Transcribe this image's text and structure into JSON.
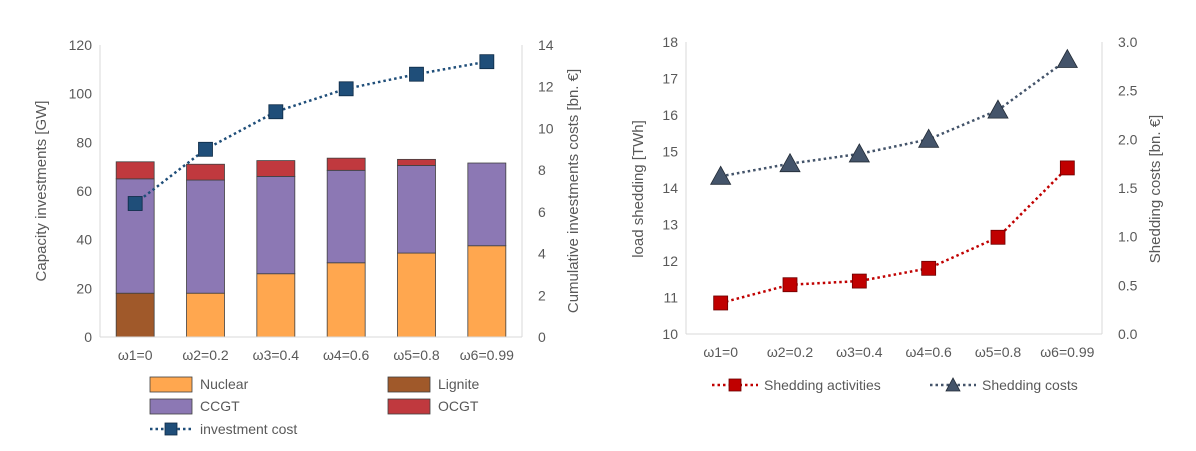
{
  "chart_data": [
    {
      "type": "bar",
      "stacked": true,
      "categories": [
        "ω1=0",
        "ω2=0.2",
        "ω3=0.4",
        "ω4=0.6",
        "ω5=0.8",
        "ω6=0.99"
      ],
      "ylabel": "Capacity investments [GW]",
      "ylim": [
        0,
        120
      ],
      "yticks": [
        "0",
        "20",
        "40",
        "60",
        "80",
        "100",
        "120"
      ],
      "y2label": "Cumulative investments costs [bn. €]",
      "y2lim": [
        0,
        14
      ],
      "y2ticks": [
        "0",
        "2",
        "4",
        "6",
        "8",
        "10",
        "12",
        "14"
      ],
      "series": [
        {
          "name": "Lignite",
          "color": "#A0592A",
          "values": [
            18,
            0,
            0,
            0,
            0,
            0
          ]
        },
        {
          "name": "Nuclear",
          "color": "#FFA74F",
          "values": [
            0,
            18,
            26,
            30.5,
            34.5,
            37.5
          ]
        },
        {
          "name": "CCGT",
          "color": "#8C78B4",
          "values": [
            47,
            46.5,
            40,
            38,
            36,
            34
          ]
        },
        {
          "name": "OCGT",
          "color": "#C0393E",
          "values": [
            7,
            6.5,
            6.5,
            5,
            2.5,
            0
          ]
        }
      ],
      "line_series": [
        {
          "name": "investment cost",
          "axis": "y2",
          "color": "#1F4E79",
          "values": [
            6.4,
            9.0,
            10.8,
            11.9,
            12.6,
            13.2
          ]
        }
      ],
      "legend": {
        "position": "bottom",
        "entries": [
          "Nuclear",
          "Lignite",
          "CCGT",
          "OCGT",
          "investment cost"
        ]
      },
      "grid": false
    },
    {
      "type": "line",
      "categories": [
        "ω1=0",
        "ω2=0.2",
        "ω3=0.4",
        "ω4=0.6",
        "ω5=0.8",
        "ω6=0.99"
      ],
      "ylabel": "load shedding [TWh]",
      "ylim": [
        10,
        18
      ],
      "yticks": [
        "10",
        "11",
        "12",
        "13",
        "14",
        "15",
        "16",
        "17",
        "18"
      ],
      "y2label": "Shedding costs [bn. €]",
      "y2lim": [
        0,
        3
      ],
      "y2ticks": [
        "0.0",
        "0.5",
        "1.0",
        "1.5",
        "2.0",
        "2.5",
        "3.0"
      ],
      "series": [
        {
          "name": "Shedding activities",
          "axis": "y",
          "color": "#C00000",
          "marker": "square",
          "values": [
            10.85,
            11.35,
            11.45,
            11.8,
            12.65,
            14.55
          ]
        },
        {
          "name": "Shedding costs",
          "axis": "y2",
          "color": "#44546A",
          "marker": "triangle",
          "values": [
            1.62,
            1.75,
            1.85,
            2.0,
            2.3,
            2.82
          ]
        }
      ],
      "legend": {
        "position": "bottom",
        "entries": [
          "Shedding activities",
          "Shedding costs"
        ]
      },
      "grid": false
    }
  ]
}
